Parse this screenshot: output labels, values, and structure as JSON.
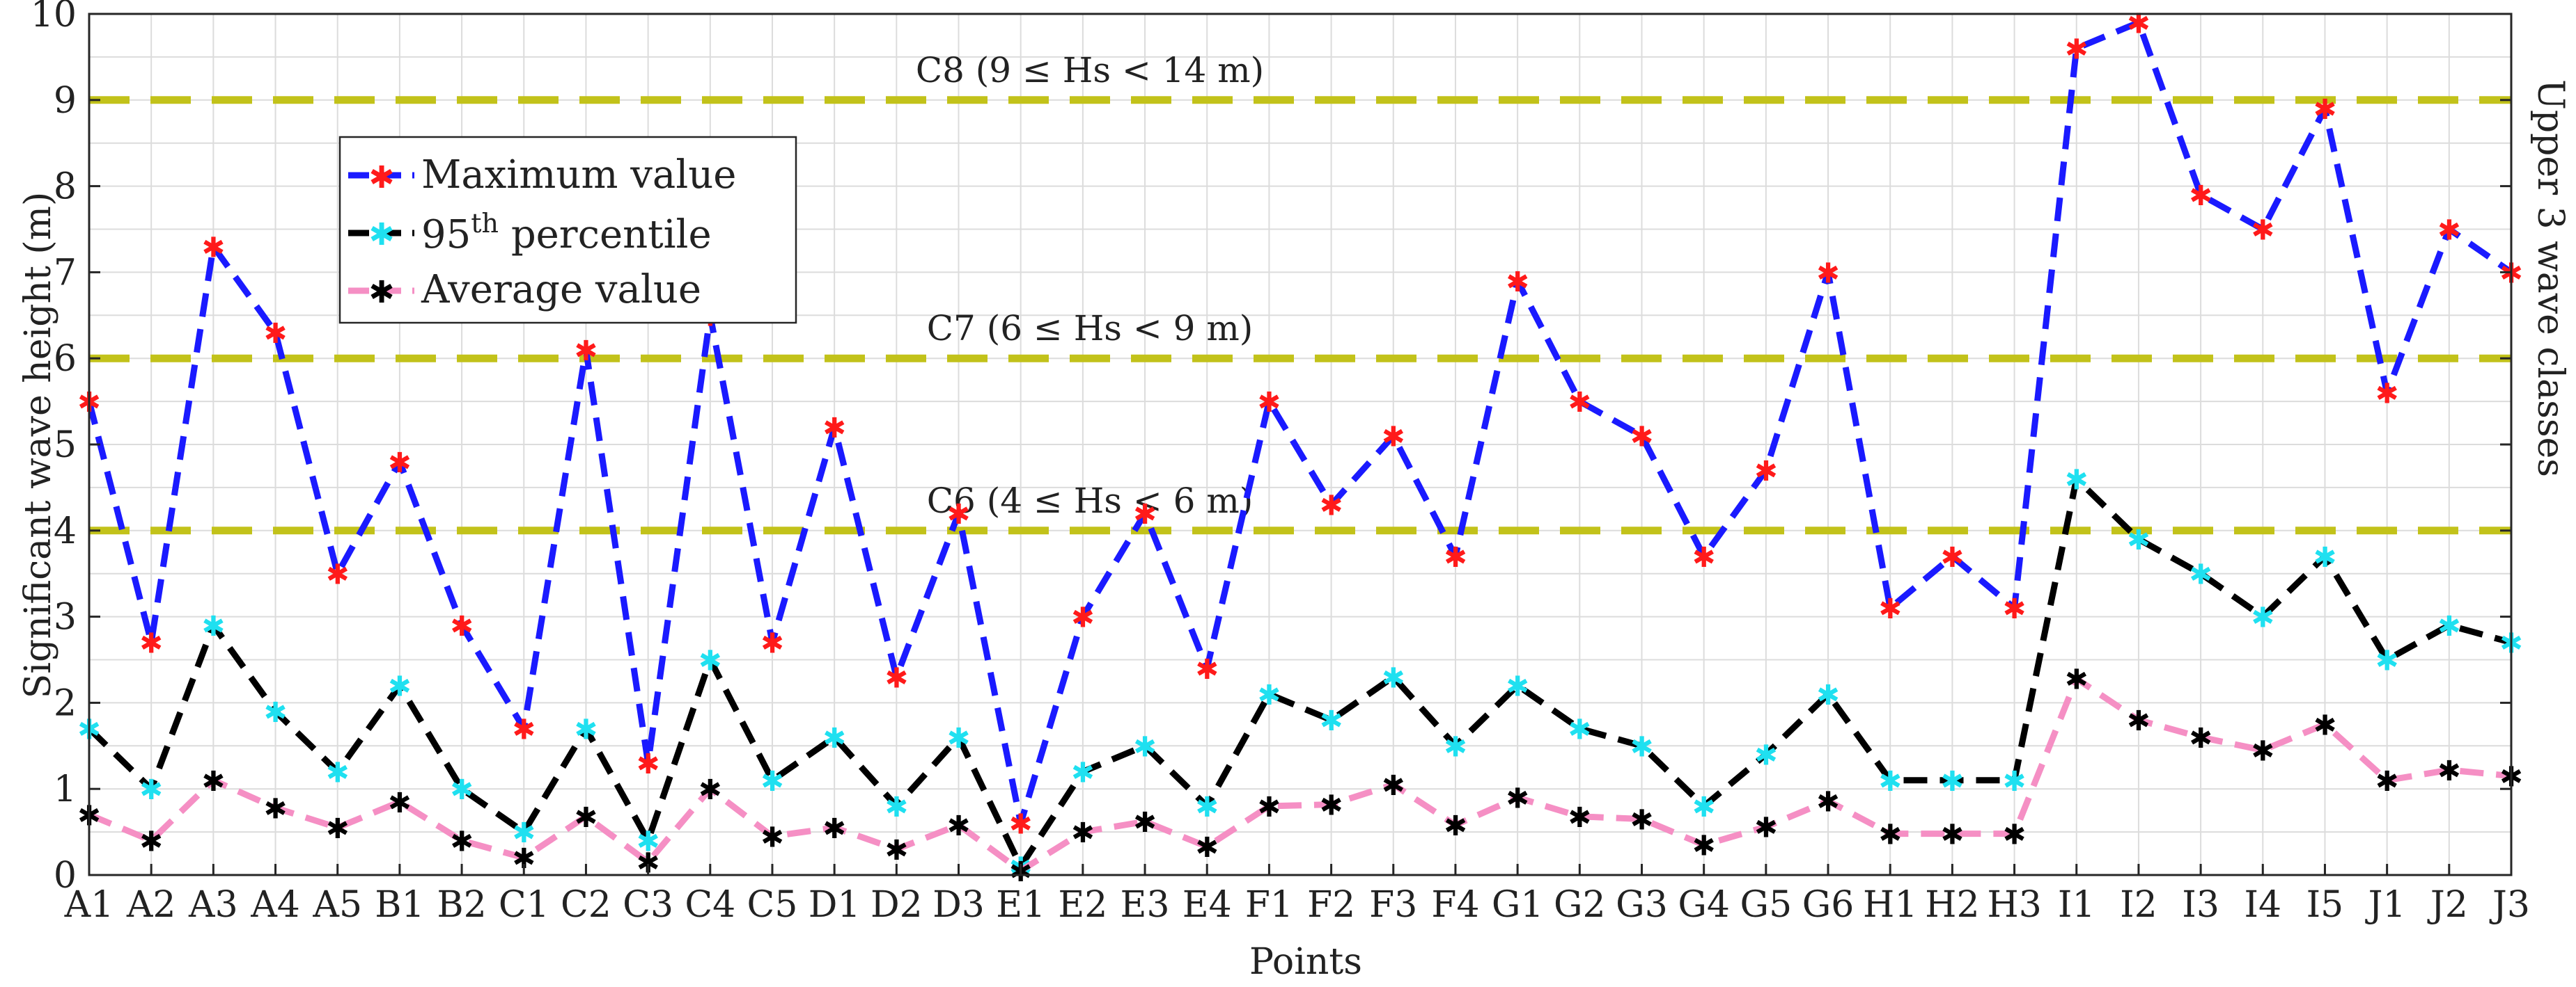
{
  "chart_data": {
    "type": "line",
    "xlabel": "Points",
    "ylabel": "Significant wave height (m)",
    "ylim": [
      0,
      10
    ],
    "yticks": [
      0,
      1,
      2,
      3,
      4,
      5,
      6,
      7,
      8,
      9,
      10
    ],
    "grid": true,
    "legend_position": "top-left",
    "right_label": "Upper 3 wave classes",
    "categories": [
      "A1",
      "A2",
      "A3",
      "A4",
      "A5",
      "B1",
      "B2",
      "C1",
      "C2",
      "C3",
      "C4",
      "C5",
      "D1",
      "D2",
      "D3",
      "E1",
      "E2",
      "E3",
      "E4",
      "F1",
      "F2",
      "F3",
      "F4",
      "G1",
      "G2",
      "G3",
      "G4",
      "G5",
      "G6",
      "H1",
      "H2",
      "H3",
      "I1",
      "I2",
      "I3",
      "I4",
      "I5",
      "J1",
      "J2",
      "J3"
    ],
    "series": [
      {
        "name": "Maximum value",
        "line_color": "#1a1aff",
        "marker_color": "#ff1a1a",
        "values": [
          5.5,
          2.7,
          7.3,
          6.3,
          3.5,
          4.8,
          2.9,
          1.7,
          6.1,
          1.3,
          6.5,
          2.7,
          5.2,
          2.3,
          4.2,
          0.6,
          3.0,
          4.2,
          2.4,
          5.5,
          4.3,
          5.1,
          3.7,
          6.9,
          5.5,
          5.1,
          3.7,
          4.7,
          7.0,
          3.1,
          3.7,
          3.1,
          9.6,
          9.9,
          7.9,
          7.5,
          8.9,
          5.6,
          7.5,
          7.0
        ]
      },
      {
        "name_prefix": "95",
        "name_sup": "th",
        "name_suffix": " percentile",
        "line_color": "#000000",
        "marker_color": "#1fe0f0",
        "values": [
          1.7,
          1.0,
          2.9,
          1.9,
          1.2,
          2.2,
          1.0,
          0.5,
          1.7,
          0.4,
          2.5,
          1.1,
          1.6,
          0.8,
          1.6,
          0.1,
          1.2,
          1.5,
          0.8,
          2.1,
          1.8,
          2.3,
          1.5,
          2.2,
          1.7,
          1.5,
          0.8,
          1.4,
          2.1,
          1.1,
          1.1,
          1.1,
          4.6,
          3.9,
          3.5,
          3.0,
          3.7,
          2.5,
          2.9,
          2.7
        ]
      },
      {
        "name": "Average value",
        "line_color": "#f58fc4",
        "marker_color": "#000000",
        "values": [
          0.7,
          0.4,
          1.1,
          0.78,
          0.55,
          0.85,
          0.4,
          0.2,
          0.68,
          0.15,
          1.0,
          0.45,
          0.55,
          0.3,
          0.58,
          0.05,
          0.5,
          0.62,
          0.33,
          0.8,
          0.82,
          1.05,
          0.58,
          0.9,
          0.68,
          0.65,
          0.35,
          0.56,
          0.86,
          0.48,
          0.48,
          0.48,
          2.28,
          1.8,
          1.6,
          1.45,
          1.75,
          1.1,
          1.22,
          1.15
        ]
      }
    ],
    "bands": [
      {
        "y": 9,
        "label": "C8 (9 ≤ Hs < 14 m)",
        "color": "#c2c21a"
      },
      {
        "y": 6,
        "label": "C7 (6 ≤ Hs < 9 m)",
        "color": "#c2c21a"
      },
      {
        "y": 4,
        "label": "C6 (4 ≤ Hs < 6 m)",
        "color": "#c2c21a"
      }
    ]
  }
}
